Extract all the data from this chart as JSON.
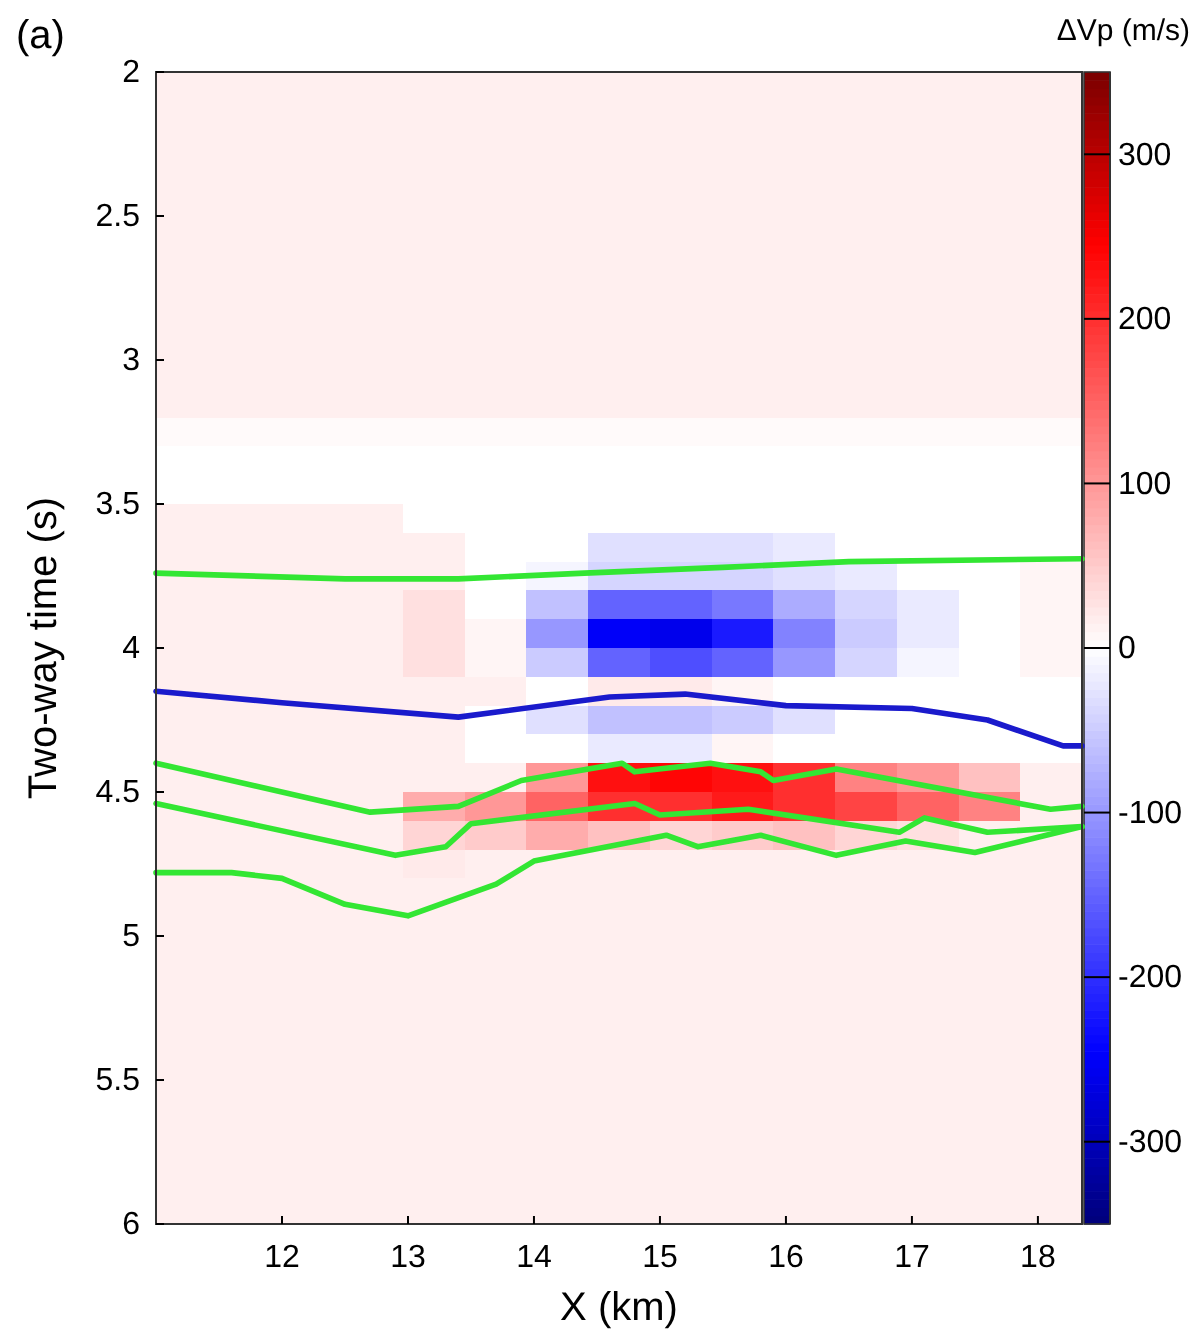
{
  "chart_data": [
    {
      "type": "line",
      "xlabel": "X (km)",
      "ylabel": "Two-way time (s)",
      "annotations": [
        "(a)"
      ],
      "xlim": [
        11.0,
        18.35
      ],
      "xticks": [
        12,
        13,
        14,
        15,
        16,
        17,
        18
      ],
      "ylim": [
        6,
        2
      ],
      "yticks": [
        2,
        2.5,
        3,
        3.5,
        4,
        4.5,
        5,
        5.5,
        6
      ],
      "series": [
        {
          "color": "#33e633",
          "x": [
            11.0,
            12.5,
            13.4,
            14.4,
            15.5,
            16.5,
            18.35
          ],
          "values": [
            3.74,
            3.76,
            3.76,
            3.74,
            3.72,
            3.7,
            3.69
          ]
        },
        {
          "color": "#1a1acc",
          "x": [
            11.0,
            12.0,
            13.4,
            14.6,
            15.2,
            16.0,
            17.0,
            17.6,
            18.2,
            18.35
          ],
          "values": [
            4.15,
            4.19,
            4.24,
            4.17,
            4.16,
            4.2,
            4.21,
            4.25,
            4.34,
            4.34
          ]
        },
        {
          "color": "#33e633",
          "x": [
            11.0,
            12.7,
            13.4,
            13.9,
            14.7,
            14.8,
            15.4,
            15.8,
            15.9,
            16.4,
            18.1,
            18.35
          ],
          "values": [
            4.4,
            4.57,
            4.55,
            4.46,
            4.4,
            4.43,
            4.4,
            4.43,
            4.46,
            4.42,
            4.56,
            4.55
          ]
        },
        {
          "color": "#33e633",
          "x": [
            11.0,
            12.9,
            13.3,
            13.5,
            14.8,
            15.0,
            15.7,
            16.9,
            17.1,
            17.6,
            18.35
          ],
          "values": [
            4.54,
            4.72,
            4.69,
            4.61,
            4.54,
            4.58,
            4.56,
            4.64,
            4.59,
            4.64,
            4.62
          ]
        },
        {
          "color": "#33e633",
          "x": [
            11.0,
            11.6,
            12.0,
            12.5,
            13.0,
            13.7,
            14.0,
            15.05,
            15.3,
            15.8,
            16.4,
            16.95,
            17.5,
            18.35
          ],
          "values": [
            4.78,
            4.78,
            4.8,
            4.89,
            4.93,
            4.82,
            4.74,
            4.65,
            4.69,
            4.65,
            4.72,
            4.67,
            4.71,
            4.62
          ]
        }
      ]
    },
    {
      "type": "heatmap",
      "clabel": "ΔVp (m/s)",
      "clim": [
        -350,
        350
      ],
      "cticks": [
        -300,
        -200,
        -100,
        0,
        100,
        200,
        300
      ],
      "categories": [
        null,
        null,
        null,
        null,
        null,
        null,
        null,
        null,
        null,
        null,
        null,
        null,
        null,
        null,
        null
      ],
      "y_categories": [
        null,
        null,
        null,
        null,
        null,
        null,
        null,
        null,
        null,
        null,
        null,
        null,
        null,
        null,
        null,
        null,
        null,
        null,
        null,
        null,
        null,
        null,
        null,
        null,
        null,
        null,
        null,
        null,
        null,
        null,
        null,
        null,
        null,
        null,
        null,
        null,
        null,
        null,
        null,
        null
      ],
      "cells": [
        [
          15,
          15,
          15,
          15,
          15,
          15,
          15,
          15,
          15,
          15,
          15,
          15,
          15,
          15,
          15
        ],
        [
          15,
          15,
          15,
          15,
          15,
          15,
          15,
          15,
          15,
          15,
          15,
          15,
          15,
          15,
          15
        ],
        [
          15,
          15,
          15,
          15,
          15,
          15,
          15,
          15,
          15,
          15,
          15,
          15,
          15,
          15,
          15
        ],
        [
          15,
          15,
          15,
          15,
          15,
          15,
          15,
          15,
          15,
          15,
          15,
          15,
          15,
          15,
          15
        ],
        [
          15,
          15,
          15,
          15,
          15,
          15,
          15,
          15,
          15,
          15,
          15,
          15,
          15,
          15,
          15
        ],
        [
          15,
          15,
          15,
          15,
          15,
          15,
          15,
          15,
          15,
          15,
          15,
          15,
          15,
          15,
          15
        ],
        [
          15,
          15,
          15,
          15,
          15,
          15,
          15,
          15,
          15,
          15,
          15,
          15,
          15,
          15,
          15
        ],
        [
          15,
          15,
          15,
          15,
          15,
          15,
          15,
          15,
          15,
          15,
          15,
          15,
          15,
          15,
          15
        ],
        [
          15,
          15,
          15,
          15,
          15,
          15,
          15,
          15,
          15,
          15,
          15,
          15,
          15,
          15,
          15
        ],
        [
          15,
          15,
          15,
          15,
          15,
          15,
          15,
          15,
          15,
          15,
          15,
          15,
          15,
          15,
          15
        ],
        [
          15,
          15,
          15,
          15,
          15,
          15,
          15,
          15,
          15,
          15,
          15,
          15,
          15,
          15,
          15
        ],
        [
          15,
          15,
          15,
          15,
          15,
          15,
          15,
          15,
          15,
          15,
          15,
          15,
          15,
          15,
          15
        ],
        [
          5,
          5,
          5,
          5,
          5,
          5,
          5,
          5,
          5,
          5,
          5,
          5,
          5,
          5,
          5
        ],
        [
          0,
          0,
          0,
          0,
          0,
          0,
          0,
          0,
          0,
          0,
          0,
          0,
          0,
          0,
          0
        ],
        [
          0,
          0,
          0,
          0,
          0,
          0,
          0,
          0,
          0,
          0,
          0,
          0,
          0,
          0,
          0
        ],
        [
          15,
          15,
          15,
          15,
          0,
          0,
          0,
          0,
          0,
          0,
          0,
          0,
          0,
          0,
          0
        ],
        [
          15,
          15,
          15,
          15,
          15,
          0,
          0,
          -30,
          -30,
          -30,
          -20,
          0,
          0,
          0,
          0
        ],
        [
          15,
          15,
          15,
          15,
          15,
          0,
          -10,
          -40,
          -40,
          -40,
          -30,
          -20,
          0,
          0,
          10
        ],
        [
          15,
          15,
          15,
          15,
          30,
          0,
          -60,
          -150,
          -150,
          -130,
          -80,
          -40,
          -20,
          0,
          10
        ],
        [
          15,
          15,
          15,
          15,
          30,
          10,
          -100,
          -250,
          -260,
          -220,
          -120,
          -50,
          -20,
          0,
          10
        ],
        [
          15,
          15,
          15,
          15,
          30,
          10,
          -50,
          -150,
          -170,
          -150,
          -100,
          -40,
          -10,
          0,
          10
        ],
        [
          15,
          15,
          15,
          15,
          15,
          15,
          0,
          20,
          20,
          10,
          0,
          0,
          0,
          0,
          0
        ],
        [
          15,
          15,
          15,
          15,
          15,
          0,
          -30,
          -60,
          -60,
          -50,
          -30,
          0,
          0,
          0,
          0
        ],
        [
          15,
          15,
          15,
          15,
          15,
          0,
          0,
          -20,
          -20,
          10,
          0,
          0,
          0,
          0,
          0
        ],
        [
          15,
          15,
          15,
          15,
          15,
          15,
          100,
          230,
          240,
          230,
          200,
          120,
          100,
          60,
          15
        ],
        [
          15,
          15,
          15,
          15,
          80,
          100,
          150,
          200,
          200,
          220,
          200,
          180,
          150,
          120,
          15
        ],
        [
          15,
          15,
          15,
          15,
          40,
          50,
          80,
          60,
          40,
          50,
          60,
          40,
          30,
          15,
          15
        ],
        [
          15,
          15,
          15,
          15,
          20,
          15,
          15,
          15,
          15,
          15,
          15,
          15,
          15,
          15,
          15
        ],
        [
          15,
          15,
          15,
          15,
          15,
          15,
          15,
          15,
          15,
          15,
          15,
          15,
          15,
          15,
          15
        ],
        [
          15,
          15,
          15,
          15,
          15,
          15,
          15,
          15,
          15,
          15,
          15,
          15,
          15,
          15,
          15
        ],
        [
          15,
          15,
          15,
          15,
          15,
          15,
          15,
          15,
          15,
          15,
          15,
          15,
          15,
          15,
          15
        ],
        [
          15,
          15,
          15,
          15,
          15,
          15,
          15,
          15,
          15,
          15,
          15,
          15,
          15,
          15,
          15
        ],
        [
          15,
          15,
          15,
          15,
          15,
          15,
          15,
          15,
          15,
          15,
          15,
          15,
          15,
          15,
          15
        ],
        [
          15,
          15,
          15,
          15,
          15,
          15,
          15,
          15,
          15,
          15,
          15,
          15,
          15,
          15,
          15
        ],
        [
          15,
          15,
          15,
          15,
          15,
          15,
          15,
          15,
          15,
          15,
          15,
          15,
          15,
          15,
          15
        ],
        [
          15,
          15,
          15,
          15,
          15,
          15,
          15,
          15,
          15,
          15,
          15,
          15,
          15,
          15,
          15
        ],
        [
          15,
          15,
          15,
          15,
          15,
          15,
          15,
          15,
          15,
          15,
          15,
          15,
          15,
          15,
          15
        ],
        [
          15,
          15,
          15,
          15,
          15,
          15,
          15,
          15,
          15,
          15,
          15,
          15,
          15,
          15,
          15
        ],
        [
          15,
          15,
          15,
          15,
          15,
          15,
          15,
          15,
          15,
          15,
          15,
          15,
          15,
          15,
          15
        ],
        [
          15,
          15,
          15,
          15,
          15,
          15,
          15,
          15,
          15,
          15,
          15,
          15,
          15,
          15,
          15
        ]
      ]
    }
  ]
}
